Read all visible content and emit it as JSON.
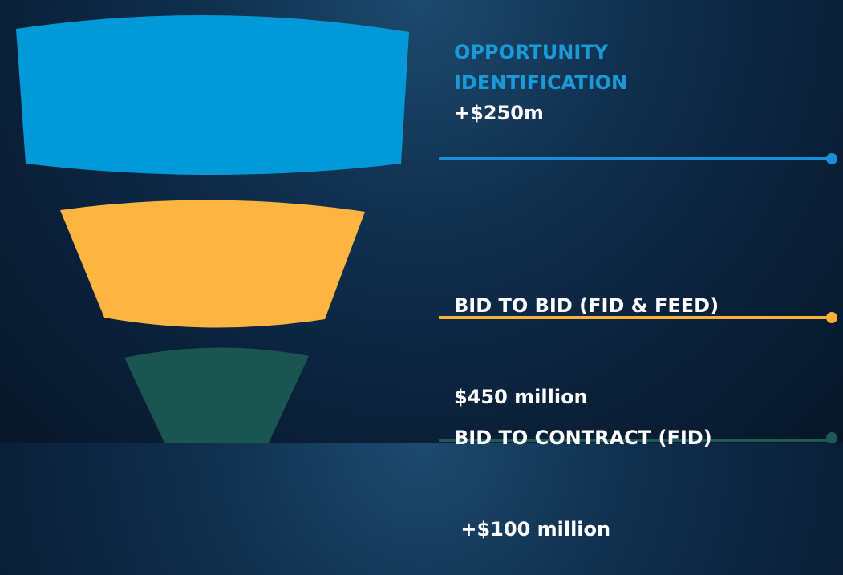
{
  "stages": [
    {
      "title": "OPPORTUNITY IDENTIFICATION",
      "value": "+$250m"
    },
    {
      "title": "BID TO BID (FID & FEED)",
      "value": "$450 million"
    },
    {
      "title": "BID TO CONTRACT (FID)",
      "value": " +$100 million"
    }
  ]
}
